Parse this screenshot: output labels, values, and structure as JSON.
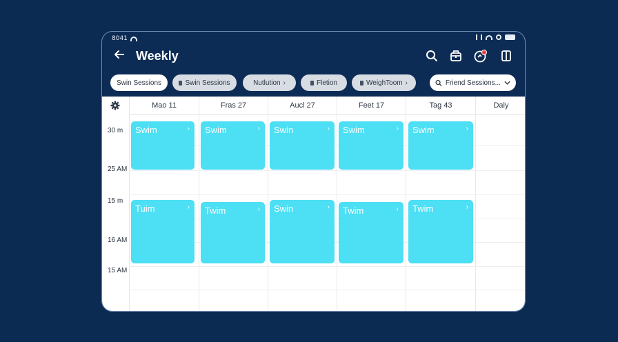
{
  "status": {
    "time": "8041"
  },
  "header": {
    "title": "Weekly"
  },
  "icons": {
    "back": "arrow-left-icon",
    "search": "search-icon",
    "package": "package-icon",
    "notification": "notification-badge-icon",
    "book": "book-icon",
    "settings": "gear-icon"
  },
  "filters": [
    {
      "label": "Swin Sessions",
      "style": "white",
      "lock": false,
      "chevron": false
    },
    {
      "label": "Swin Sessions",
      "style": "grey",
      "lock": true,
      "chevron": false
    },
    {
      "label": "Nutlution",
      "style": "grey",
      "lock": false,
      "chevron": true
    },
    {
      "label": "Fletion",
      "style": "grey",
      "lock": true,
      "chevron": false
    },
    {
      "label": "WeighToom",
      "style": "grey",
      "lock": true,
      "chevron": true
    },
    {
      "label": "Friend Sessions...",
      "style": "white",
      "search": true,
      "dropdown": true
    }
  ],
  "days": [
    "Mao 11",
    "Fras 27",
    "Aucl 27",
    "Feet 17",
    "Tag 43",
    "Daly"
  ],
  "time_labels": [
    "30 m",
    "25 AM",
    "15 m",
    "16 AM",
    "15 AM"
  ],
  "events": [
    {
      "title": "Swim",
      "day": 0,
      "slot": 0
    },
    {
      "title": "Swim",
      "day": 1,
      "slot": 0
    },
    {
      "title": "Swin",
      "day": 2,
      "slot": 0
    },
    {
      "title": "Swim",
      "day": 3,
      "slot": 0
    },
    {
      "title": "Swim",
      "day": 4,
      "slot": 0
    },
    {
      "title": "Tuim",
      "day": 0,
      "slot": 1
    },
    {
      "title": "Twim",
      "day": 1,
      "slot": 1
    },
    {
      "title": "Swin",
      "day": 2,
      "slot": 1
    },
    {
      "title": "Twim",
      "day": 3,
      "slot": 1
    },
    {
      "title": "Twim",
      "day": 4,
      "slot": 1
    }
  ],
  "colors": {
    "event": "#4ddff3",
    "background": "#0b2b52",
    "badge": "#e8434a"
  }
}
